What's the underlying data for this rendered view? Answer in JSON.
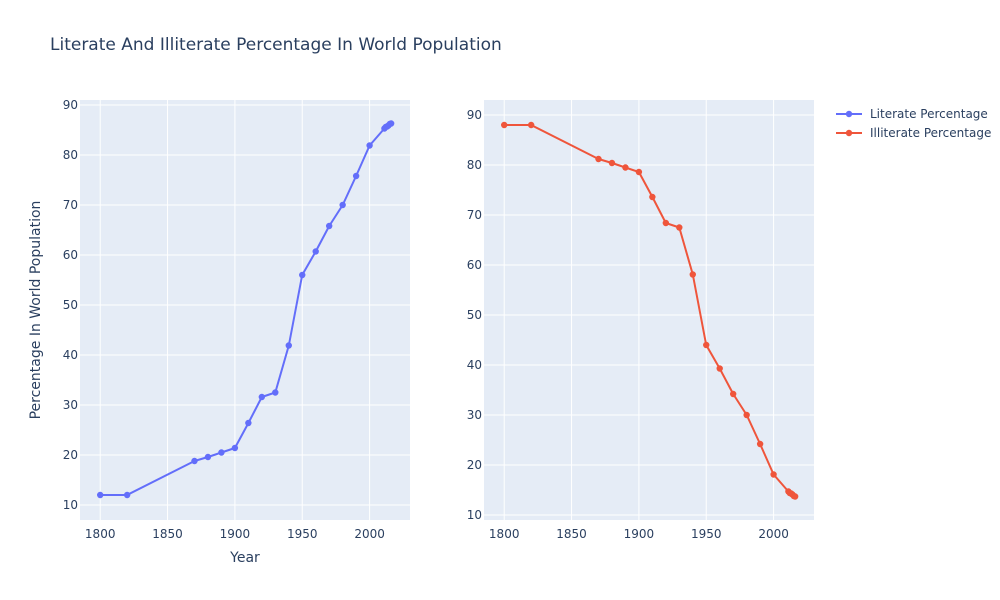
{
  "chart_data": {
    "type": "line",
    "title": "Literate And Illiterate Percentage In World Population",
    "legend_position": "top-right",
    "legend": [
      "Literate Percentage",
      "Illiterate Percentage"
    ],
    "subplots": [
      {
        "series_name": "Literate Percentage",
        "color": "#636efa",
        "xlabel": "Year",
        "ylabel": "Percentage In World Population",
        "xlim": [
          1785,
          2030
        ],
        "ylim": [
          7,
          91
        ],
        "xticks": [
          1800,
          1850,
          1900,
          1950,
          2000
        ],
        "yticks": [
          10,
          20,
          30,
          40,
          50,
          60,
          70,
          80,
          90
        ],
        "x": [
          1800,
          1820,
          1870,
          1880,
          1890,
          1900,
          1910,
          1920,
          1930,
          1940,
          1950,
          1960,
          1970,
          1980,
          1990,
          2000,
          2011,
          2012,
          2013,
          2014,
          2015,
          2016
        ],
        "y": [
          12,
          12,
          18.8,
          19.6,
          20.5,
          21.4,
          26.4,
          31.6,
          32.5,
          41.9,
          56,
          60.7,
          65.8,
          70,
          75.8,
          81.9,
          85.3,
          85.6,
          85.7,
          85.9,
          86.2,
          86.3
        ]
      },
      {
        "series_name": "Illiterate Percentage",
        "color": "#ef553b",
        "xlabel": "",
        "ylabel": "",
        "xlim": [
          1785,
          2030
        ],
        "ylim": [
          9,
          93
        ],
        "xticks": [
          1800,
          1850,
          1900,
          1950,
          2000
        ],
        "yticks": [
          10,
          20,
          30,
          40,
          50,
          60,
          70,
          80,
          90
        ],
        "x": [
          1800,
          1820,
          1870,
          1880,
          1890,
          1900,
          1910,
          1920,
          1930,
          1940,
          1950,
          1960,
          1970,
          1980,
          1990,
          2000,
          2011,
          2012,
          2013,
          2014,
          2015,
          2016
        ],
        "y": [
          88,
          88,
          81.2,
          80.4,
          79.5,
          78.6,
          73.6,
          68.4,
          67.5,
          58.1,
          44,
          39.3,
          34.2,
          30,
          24.2,
          18.1,
          14.7,
          14.4,
          14.3,
          14.1,
          13.8,
          13.7
        ]
      }
    ]
  }
}
